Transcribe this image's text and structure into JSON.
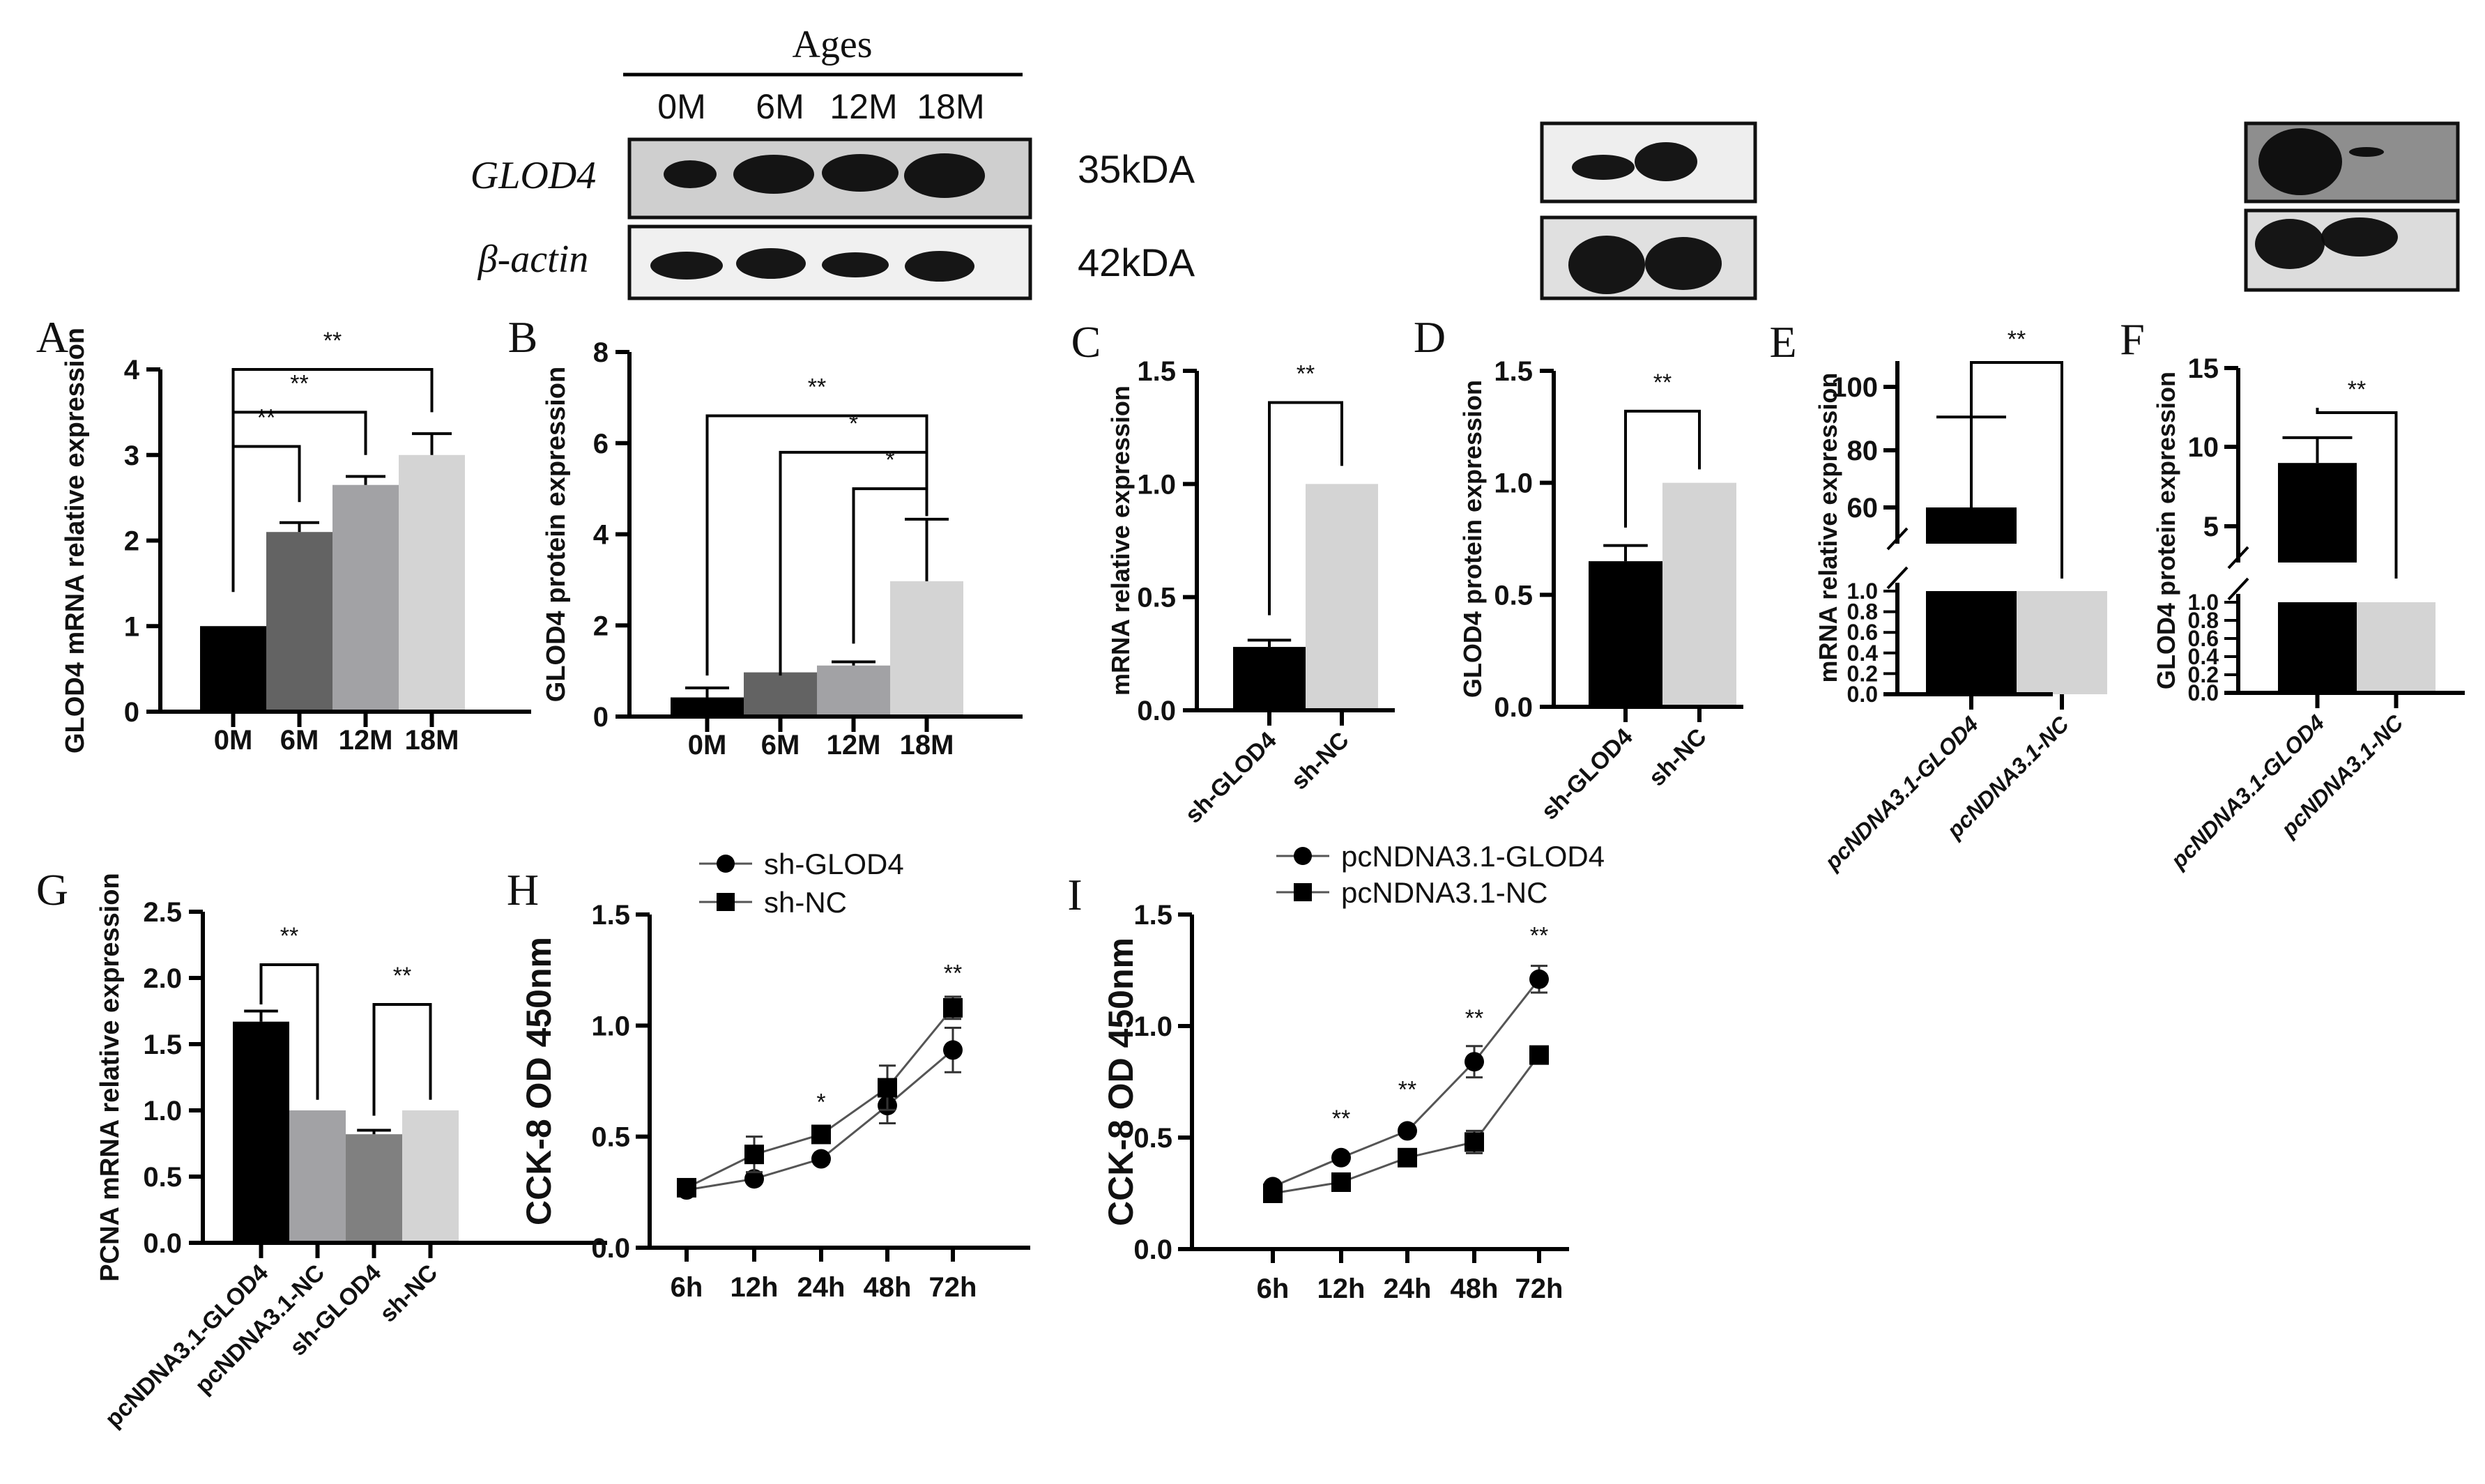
{
  "figure": {
    "blot_main": {
      "group_label": "Ages",
      "lanes": [
        "0M",
        "6M",
        "12M",
        "18M"
      ],
      "rows": [
        {
          "label": "GLOD4",
          "kda": "35kDA"
        },
        {
          "label": "β-actin",
          "kda": "42kDA"
        }
      ]
    },
    "panel_letters": [
      "A",
      "B",
      "C",
      "D",
      "E",
      "F",
      "G",
      "H",
      "I"
    ]
  },
  "colors": {
    "black": "#000000",
    "dark_gray": "#636363",
    "mid_gray": "#a2a2a5",
    "light_gray": "#d4d4d4",
    "gray_g": "#808080"
  },
  "chart_data": [
    {
      "id": "A",
      "type": "bar",
      "title": "",
      "ylabel": "GLOD4 mRNA relative expression",
      "categories": [
        "0M",
        "6M",
        "12M",
        "18M"
      ],
      "values": [
        1.0,
        2.1,
        2.65,
        3.0
      ],
      "errors": [
        0.0,
        0.11,
        0.1,
        0.25
      ],
      "yticks": [
        "0",
        "1",
        "2",
        "3",
        "4"
      ],
      "ylim": [
        0,
        4
      ],
      "significance": [
        {
          "from": "0M",
          "to": "6M",
          "label": "**"
        },
        {
          "from": "0M",
          "to": "12M",
          "label": "**"
        },
        {
          "from": "0M",
          "to": "18M",
          "label": "**"
        }
      ]
    },
    {
      "id": "B",
      "type": "bar",
      "ylabel": "GLOD4 protein expression",
      "categories": [
        "0M",
        "6M",
        "12M",
        "18M"
      ],
      "values": [
        0.42,
        0.97,
        1.12,
        2.97
      ],
      "errors": [
        0.21,
        0.0,
        0.08,
        1.36
      ],
      "yticks": [
        "0",
        "2",
        "4",
        "6",
        "8"
      ],
      "ylim": [
        0,
        8
      ],
      "significance": [
        {
          "from": "0M",
          "to": "18M",
          "label": "**"
        },
        {
          "from": "6M",
          "to": "18M",
          "label": "*"
        },
        {
          "from": "12M",
          "to": "18M",
          "label": "*"
        }
      ]
    },
    {
      "id": "C",
      "type": "bar",
      "ylabel": "mRNA relative expression",
      "categories": [
        "sh-GLOD4",
        "sh-NC"
      ],
      "values": [
        0.28,
        1.0
      ],
      "errors": [
        0.03,
        0.0
      ],
      "yticks": [
        "0.0",
        "0.5",
        "1.0",
        "1.5"
      ],
      "ylim": [
        0,
        1.5
      ],
      "significance": [
        {
          "from": "sh-GLOD4",
          "to": "sh-NC",
          "label": "**"
        }
      ]
    },
    {
      "id": "D",
      "type": "bar",
      "ylabel": "GLOD4 protein expression",
      "categories": [
        "sh-GLOD4",
        "sh-NC"
      ],
      "values": [
        0.65,
        1.0
      ],
      "errors": [
        0.07,
        0.0
      ],
      "yticks": [
        "0.0",
        "0.5",
        "1.0",
        "1.5"
      ],
      "ylim": [
        0,
        1.5
      ],
      "significance": [
        {
          "from": "sh-GLOD4",
          "to": "sh-NC",
          "label": "**"
        }
      ]
    },
    {
      "id": "E",
      "type": "bar",
      "ylabel": "mRNA relative expression",
      "categories": [
        "pcNDNA3.1-GLOD4",
        "pcNDNA3.1-NC"
      ],
      "values": [
        60,
        1.0
      ],
      "errors": [
        30,
        0.0
      ],
      "axis_break": true,
      "yticks_lower": [
        "0.0",
        "0.2",
        "0.4",
        "0.6",
        "0.8",
        "1.0"
      ],
      "yticks_upper": [
        "60",
        "80",
        "100"
      ],
      "ylim_lower": [
        0,
        1.0
      ],
      "ylim_upper": [
        50,
        110
      ],
      "significance": [
        {
          "from": "pcNDNA3.1-GLOD4",
          "to": "pcNDNA3.1-NC",
          "label": "**"
        }
      ]
    },
    {
      "id": "F",
      "type": "bar",
      "ylabel": "GLOD4 protein expression",
      "categories": [
        "pcNDNA3.1-GLOD4",
        "pcNDNA3.1-NC"
      ],
      "values": [
        9.0,
        1.0
      ],
      "errors": [
        1.6,
        0.0
      ],
      "axis_break": true,
      "yticks_lower": [
        "0.0",
        "0.2",
        "0.4",
        "0.6",
        "0.8",
        "1.0"
      ],
      "yticks_upper": [
        "5",
        "10",
        "15"
      ],
      "ylim_lower": [
        0,
        1.0
      ],
      "ylim_upper": [
        2.3,
        15
      ],
      "significance": [
        {
          "from": "pcNDNA3.1-GLOD4",
          "to": "pcNDNA3.1-NC",
          "label": "**"
        }
      ]
    },
    {
      "id": "G",
      "type": "bar",
      "ylabel": "PCNA mRNA relative expression",
      "categories": [
        "pcNDNA3.1-GLOD4",
        "pcNDNA3.1-NC",
        "sh-GLOD4",
        "sh-NC"
      ],
      "values": [
        1.67,
        1.0,
        0.82,
        1.0
      ],
      "errors": [
        0.08,
        0.0,
        0.03,
        0.0
      ],
      "yticks": [
        "0.0",
        "0.5",
        "1.0",
        "1.5",
        "2.0",
        "2.5"
      ],
      "ylim": [
        0,
        2.5
      ],
      "significance": [
        {
          "from": "pcNDNA3.1-GLOD4",
          "to": "pcNDNA3.1-NC",
          "label": "**"
        },
        {
          "from": "sh-GLOD4",
          "to": "sh-NC",
          "label": "**"
        }
      ]
    },
    {
      "id": "H",
      "type": "line",
      "ylabel": "CCK-8 OD 450nm",
      "x": [
        "6h",
        "12h",
        "24h",
        "48h",
        "72h"
      ],
      "series": [
        {
          "name": "sh-GLOD4",
          "marker": "circle",
          "values": [
            0.26,
            0.31,
            0.4,
            0.64,
            0.89
          ],
          "errors": [
            0.01,
            0.01,
            0.01,
            0.08,
            0.1
          ]
        },
        {
          "name": "sh-NC",
          "marker": "square",
          "values": [
            0.27,
            0.42,
            0.51,
            0.72,
            1.08
          ],
          "errors": [
            0.01,
            0.08,
            0.03,
            0.1,
            0.05
          ]
        }
      ],
      "yticks": [
        "0.0",
        "0.5",
        "1.0",
        "1.5"
      ],
      "ylim": [
        0,
        1.5
      ],
      "annotations": [
        {
          "x": "24h",
          "label": "*"
        },
        {
          "x": "72h",
          "label": "**"
        }
      ],
      "legend_position": "top"
    },
    {
      "id": "I",
      "type": "line",
      "ylabel": "CCK-8 OD 450nm",
      "x": [
        "6h",
        "12h",
        "24h",
        "48h",
        "72h"
      ],
      "series": [
        {
          "name": "pcNDNA3.1-GLOD4",
          "marker": "circle",
          "values": [
            0.28,
            0.41,
            0.53,
            0.84,
            1.21
          ],
          "errors": [
            0.01,
            0.01,
            0.01,
            0.07,
            0.06
          ]
        },
        {
          "name": "pcNDNA3.1-NC",
          "marker": "square",
          "values": [
            0.25,
            0.3,
            0.41,
            0.48,
            0.87
          ],
          "errors": [
            0.01,
            0.01,
            0.01,
            0.05,
            0.01
          ]
        }
      ],
      "yticks": [
        "0.0",
        "0.5",
        "1.0",
        "1.5"
      ],
      "ylim": [
        0,
        1.5
      ],
      "annotations": [
        {
          "x": "12h",
          "label": "**"
        },
        {
          "x": "24h",
          "label": "**"
        },
        {
          "x": "48h",
          "label": "**"
        },
        {
          "x": "72h",
          "label": "**"
        }
      ],
      "legend_position": "top"
    }
  ]
}
